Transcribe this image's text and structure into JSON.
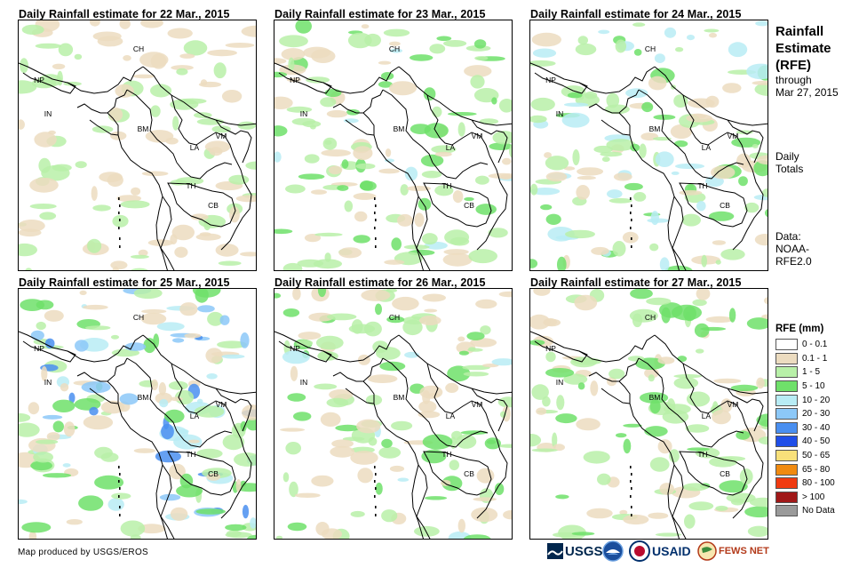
{
  "panels": [
    {
      "title": "Daily Rainfall estimate for 22 Mar., 2015",
      "intensity": 0.35,
      "seed": 22
    },
    {
      "title": "Daily Rainfall estimate for 23 Mar., 2015",
      "intensity": 0.55,
      "seed": 23
    },
    {
      "title": "Daily Rainfall estimate for 24 Mar., 2015",
      "intensity": 0.6,
      "seed": 24
    },
    {
      "title": "Daily Rainfall estimate for 25 Mar., 2015",
      "intensity": 0.75,
      "seed": 25
    },
    {
      "title": "Daily Rainfall estimate for 26 Mar., 2015",
      "intensity": 0.55,
      "seed": 26
    },
    {
      "title": "Daily Rainfall estimate for 27 Mar., 2015",
      "intensity": 0.5,
      "seed": 27
    }
  ],
  "country_labels": [
    "CH",
    "NP",
    "IN",
    "BM",
    "LA",
    "VM",
    "TH",
    "CB"
  ],
  "side": {
    "title_lines": [
      "Rainfall",
      "Estimate",
      "(RFE)"
    ],
    "through": "through",
    "date": "Mar 27, 2015",
    "daily": "Daily",
    "totals": "Totals",
    "data_label": "Data:",
    "source_1": "NOAA-",
    "source_2": "RFE2.0"
  },
  "legend": {
    "title": "RFE (mm)",
    "items": [
      {
        "label": "0 - 0.1",
        "color": "#ffffff"
      },
      {
        "label": "0.1 - 1",
        "color": "#ecdcc0"
      },
      {
        "label": "1 - 5",
        "color": "#b8f0a8"
      },
      {
        "label": "5 - 10",
        "color": "#6fe06a"
      },
      {
        "label": "10 - 20",
        "color": "#b8ecf5"
      },
      {
        "label": "20 - 30",
        "color": "#8cc8f8"
      },
      {
        "label": "30 - 40",
        "color": "#4a8ff0"
      },
      {
        "label": "40 - 50",
        "color": "#1f4ee8"
      },
      {
        "label": "50 - 65",
        "color": "#f8e07a"
      },
      {
        "label": "65 - 80",
        "color": "#f08a10"
      },
      {
        "label": "80 - 100",
        "color": "#f03a10"
      },
      {
        "label": "> 100",
        "color": "#a01818"
      },
      {
        "label": "No Data",
        "color": "#9a9a9a"
      }
    ]
  },
  "credit": "Map produced by USGS/EROS",
  "logos": {
    "usgs": "USGS",
    "usaid": "USAID",
    "fewsnet": "FEWS NET"
  }
}
